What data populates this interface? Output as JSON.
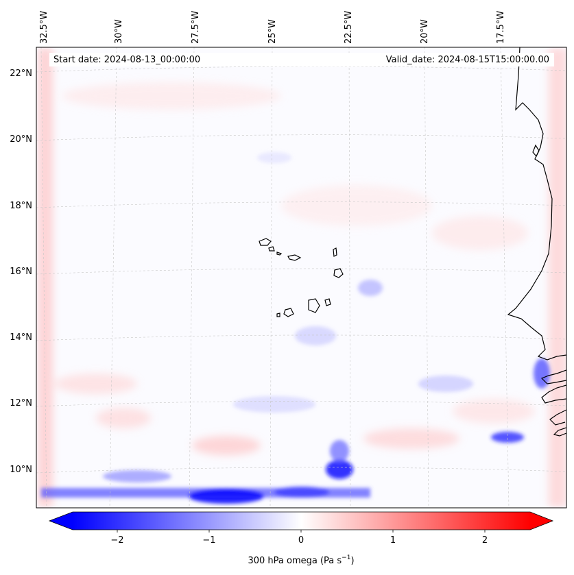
{
  "map": {
    "start_date_label": "Start date: 2024-08-13_00:00:00",
    "valid_date_label": "Valid_date: 2024-08-15T15:00:00.00",
    "lon_labels": [
      "32.5°W",
      "30°W",
      "27.5°W",
      "25°W",
      "22.5°W",
      "20°W",
      "17.5°W"
    ],
    "lat_labels": [
      "22°N",
      "20°N",
      "18°N",
      "16°N",
      "14°N",
      "12°N",
      "10°N"
    ],
    "field": "300 hPa omega",
    "colormap": "bwr"
  },
  "colorbar": {
    "label": "300 hPa omega (Pa s",
    "label_exp": "−1",
    "label_close": ")",
    "ticks": [
      "−2",
      "−1",
      "0",
      "1",
      "2"
    ],
    "min": -2.75,
    "max": 2.75,
    "extend": "both",
    "low_color": "#0000ff",
    "mid_color": "#ffffff",
    "high_color": "#ff0000"
  }
}
